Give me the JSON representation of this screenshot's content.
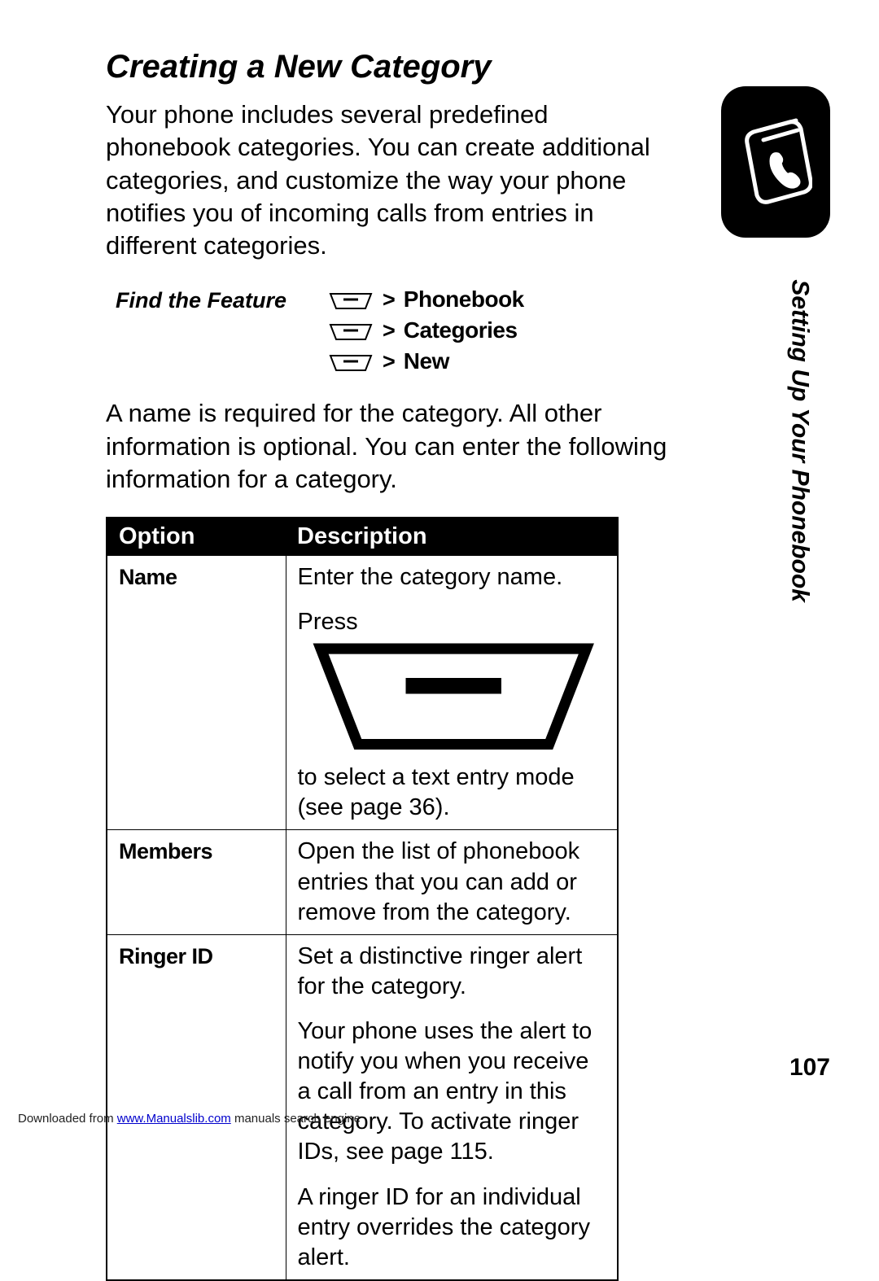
{
  "title": "Creating a New Category",
  "intro": "Your phone includes several predefined phonebook categories. You can create additional categories, and customize the way your phone notifies you of incoming calls from entries in different categories.",
  "feature_label": "Find the Feature",
  "nav": {
    "gt": ">",
    "phonebook": "Phonebook",
    "categories": "Categories",
    "new_": "New"
  },
  "paragraph": "A name is required for the category. All other information is optional. You can enter the following information for a category.",
  "table": {
    "headers": {
      "option": "Option",
      "description": "Description"
    },
    "rows": [
      {
        "option": "Name",
        "descriptions": [
          {
            "text_before": "Enter the category name.",
            "has_icon": false
          },
          {
            "text_before": "Press ",
            "has_icon": true,
            "text_after": " to select a text entry mode (see page 36)."
          }
        ]
      },
      {
        "option": "Members",
        "descriptions": [
          {
            "text_before": "Open the list of phonebook entries that you can add or remove from the category.",
            "has_icon": false
          }
        ]
      },
      {
        "option": "Ringer ID",
        "descriptions": [
          {
            "text_before": "Set a distinctive ringer alert for the category.",
            "has_icon": false
          },
          {
            "text_before": "Your phone uses the alert to notify you when you receive a call from an entry in this category. To activate ringer IDs, see page 115.",
            "has_icon": false
          },
          {
            "text_before": "A ringer ID for an individual entry overrides the category alert.",
            "has_icon": false
          }
        ]
      }
    ]
  },
  "sidebar_label": "Setting Up Your Phonebook",
  "page_number": "107",
  "footer": {
    "prefix": "Downloaded from ",
    "link_text": "www.Manualslib.com",
    "suffix": " manuals search engine"
  },
  "icon_svg": {
    "menu_key": "<svg viewBox='0 0 58 22' xmlns='http://www.w3.org/2000/svg'><path d='M4 2 L54 2 L47 20 L11 20 Z' fill='none' stroke='#000' stroke-width='2'/><line x1='20' y1='9' x2='38' y2='9' stroke='#000' stroke-width='3'/></svg>",
    "phonebook": "<svg viewBox='0 0 90 110' xmlns='http://www.w3.org/2000/svg'><g stroke='#fff' stroke-width='5' fill='none' stroke-linejoin='round' stroke-linecap='round'><path d='M18 20 L62 8 Q72 6 76 16 L88 80 Q90 90 80 94 L36 106 Q26 108 22 98 L10 34 Q8 24 18 20 Z'/><path d='M26 18 L70 6'/><path d='M30 30 L72 18'/><path d='M48 48 Q40 46 40 56 Q40 68 52 80 Q62 90 70 86 Q76 82 70 76 Q64 70 60 74 Q52 68 50 58 Q54 54 48 48 Z' fill='#fff'/></g></svg>"
  },
  "colors": {
    "background": "#ffffff",
    "text": "#000000",
    "table_header_bg": "#000000",
    "table_header_text": "#ffffff",
    "link": "#0000cc",
    "side_icon_bg": "#000000"
  }
}
